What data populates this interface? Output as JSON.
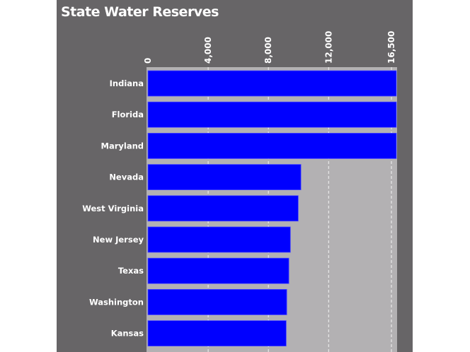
{
  "chart_data": {
    "type": "bar",
    "orientation": "horizontal",
    "title": "State Water Reserves",
    "xlabel": "",
    "ylabel": "",
    "categories": [
      "Indiana",
      "Florida",
      "Maryland",
      "Nevada",
      "West Virginia",
      "New Jersey",
      "Texas",
      "Washington",
      "Kansas"
    ],
    "values": [
      16500,
      16500,
      16500,
      10160,
      9980,
      9460,
      9360,
      9220,
      9180
    ],
    "xlim": [
      0,
      16500
    ],
    "ticks": [
      0,
      4000,
      8000,
      12000,
      16500
    ],
    "tick_labels": [
      "0",
      "4,000",
      "8,000",
      "12,000",
      "16,500"
    ],
    "grid": true,
    "colors": {
      "bar": "#0000ff",
      "plot_bg": "#b3b1b3",
      "panel_bg": "#676567",
      "grid": "#ffffff"
    }
  }
}
